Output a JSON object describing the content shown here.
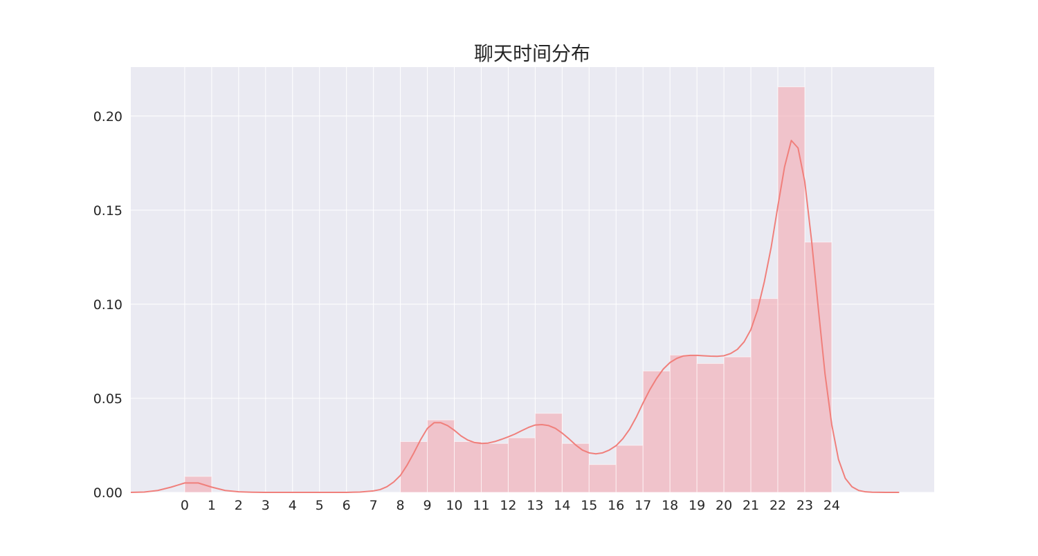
{
  "chart_data": {
    "type": "bar",
    "title": "聊天时间分布",
    "xlabel": "",
    "ylabel": "",
    "grid": true,
    "xlim": [
      -2.0,
      27.8
    ],
    "ylim": [
      0,
      0.226
    ],
    "x_ticks": [
      0,
      1,
      2,
      3,
      4,
      5,
      6,
      7,
      8,
      9,
      10,
      11,
      12,
      13,
      14,
      15,
      16,
      17,
      18,
      19,
      20,
      21,
      22,
      23,
      24
    ],
    "y_ticks": [
      0.0,
      0.05,
      0.1,
      0.15,
      0.2
    ],
    "y_tick_labels": [
      "0.00",
      "0.05",
      "0.10",
      "0.15",
      "0.20"
    ],
    "bins": [
      {
        "x0": 0,
        "x1": 1,
        "value": 0.0085
      },
      {
        "x0": 1,
        "x1": 2,
        "value": 0.0
      },
      {
        "x0": 2,
        "x1": 3,
        "value": 0.0
      },
      {
        "x0": 3,
        "x1": 4,
        "value": 0.0
      },
      {
        "x0": 4,
        "x1": 5,
        "value": 0.0
      },
      {
        "x0": 5,
        "x1": 6,
        "value": 0.0
      },
      {
        "x0": 6,
        "x1": 7,
        "value": 0.0
      },
      {
        "x0": 7,
        "x1": 8,
        "value": 0.0
      },
      {
        "x0": 8,
        "x1": 9,
        "value": 0.027
      },
      {
        "x0": 9,
        "x1": 10,
        "value": 0.0385
      },
      {
        "x0": 10,
        "x1": 11,
        "value": 0.027
      },
      {
        "x0": 11,
        "x1": 12,
        "value": 0.026
      },
      {
        "x0": 12,
        "x1": 13,
        "value": 0.029
      },
      {
        "x0": 13,
        "x1": 14,
        "value": 0.042
      },
      {
        "x0": 14,
        "x1": 15,
        "value": 0.026
      },
      {
        "x0": 15,
        "x1": 16,
        "value": 0.0148
      },
      {
        "x0": 16,
        "x1": 17,
        "value": 0.025
      },
      {
        "x0": 17,
        "x1": 18,
        "value": 0.0645
      },
      {
        "x0": 18,
        "x1": 19,
        "value": 0.073
      },
      {
        "x0": 19,
        "x1": 20,
        "value": 0.0685
      },
      {
        "x0": 20,
        "x1": 21,
        "value": 0.072
      },
      {
        "x0": 21,
        "x1": 22,
        "value": 0.103
      },
      {
        "x0": 22,
        "x1": 23,
        "value": 0.2155
      },
      {
        "x0": 23,
        "x1": 24,
        "value": 0.133
      }
    ],
    "kde": {
      "x": [
        -2.0,
        -1.5,
        -1.0,
        -0.5,
        0.0,
        0.5,
        1.0,
        1.5,
        2.0,
        2.5,
        3.0,
        4.0,
        5.0,
        6.0,
        6.5,
        7.0,
        7.25,
        7.5,
        7.75,
        8.0,
        8.25,
        8.5,
        8.75,
        9.0,
        9.25,
        9.5,
        9.75,
        10.0,
        10.25,
        10.5,
        10.75,
        11.0,
        11.25,
        11.5,
        11.75,
        12.0,
        12.25,
        12.5,
        12.75,
        13.0,
        13.25,
        13.5,
        13.75,
        14.0,
        14.25,
        14.5,
        14.75,
        15.0,
        15.25,
        15.5,
        15.75,
        16.0,
        16.25,
        16.5,
        16.75,
        17.0,
        17.25,
        17.5,
        17.75,
        18.0,
        18.25,
        18.5,
        18.75,
        19.0,
        19.25,
        19.5,
        19.75,
        20.0,
        20.25,
        20.5,
        20.75,
        21.0,
        21.25,
        21.5,
        21.75,
        22.0,
        22.25,
        22.5,
        22.75,
        23.0,
        23.25,
        23.5,
        23.75,
        24.0,
        24.25,
        24.5,
        24.75,
        25.0,
        25.25,
        25.5,
        26.0,
        26.5
      ],
      "y": [
        0.0,
        0.0002,
        0.001,
        0.0028,
        0.005,
        0.005,
        0.0028,
        0.001,
        0.0003,
        0.0001,
        0.0,
        0.0,
        0.0,
        0.0,
        0.0002,
        0.0008,
        0.0015,
        0.003,
        0.0055,
        0.009,
        0.0145,
        0.021,
        0.028,
        0.034,
        0.037,
        0.037,
        0.0355,
        0.033,
        0.03,
        0.0278,
        0.0265,
        0.026,
        0.0262,
        0.027,
        0.0282,
        0.0295,
        0.031,
        0.0328,
        0.0345,
        0.0358,
        0.036,
        0.0355,
        0.034,
        0.0315,
        0.0285,
        0.0252,
        0.0225,
        0.021,
        0.0205,
        0.021,
        0.0225,
        0.0248,
        0.0285,
        0.0335,
        0.04,
        0.0475,
        0.0545,
        0.0605,
        0.0655,
        0.069,
        0.0712,
        0.0725,
        0.0728,
        0.0728,
        0.0726,
        0.0724,
        0.0723,
        0.0726,
        0.0738,
        0.076,
        0.08,
        0.0865,
        0.097,
        0.112,
        0.13,
        0.152,
        0.173,
        0.187,
        0.183,
        0.165,
        0.134,
        0.098,
        0.063,
        0.036,
        0.0175,
        0.0075,
        0.003,
        0.001,
        0.0003,
        0.0001,
        0.0,
        0.0
      ]
    }
  },
  "colors": {
    "background": "#eaeaf2",
    "grid": "#ffffff",
    "bar_fill": "#f4a8b0",
    "bar_opacity": 0.6,
    "kde_line": "#f07f7b",
    "tick_text": "#262626"
  }
}
